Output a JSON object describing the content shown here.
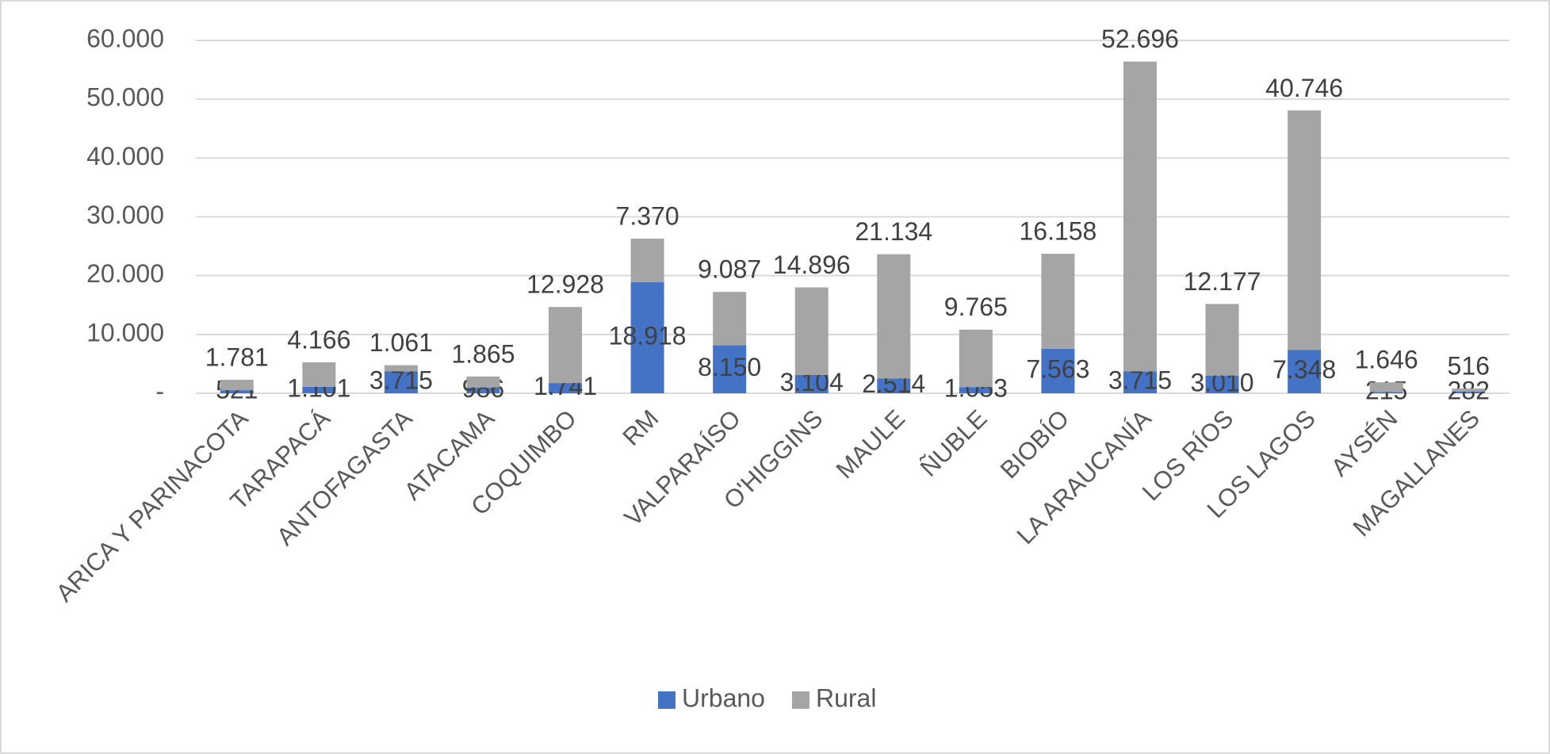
{
  "chart_data": {
    "type": "stacked_bar",
    "categories": [
      "ARICA Y PARINACOTA",
      "TARAPACÁ",
      "ANTOFAGASTA",
      "ATACAMA",
      "COQUIMBO",
      "RM",
      "VALPARAÍSO",
      "O'HIGGINS",
      "MAULE",
      "ÑUBLE",
      "BIOBÍO",
      "LA ARAUCANÍA",
      "LOS RÍOS",
      "LOS LAGOS",
      "AYSÉN",
      "MAGALLANES"
    ],
    "series": [
      {
        "name": "Urbano",
        "color": "#4472c4",
        "values": [
          521,
          1101,
          3715,
          986,
          1741,
          18918,
          8150,
          3104,
          2514,
          1053,
          7563,
          3715,
          3010,
          7348,
          215,
          282
        ],
        "value_labels": [
          "521",
          "1.101",
          "3.715",
          "986",
          "1.741",
          "18.918",
          "8.150",
          "3.104",
          "2.514",
          "1.053",
          "7.563",
          "3.715",
          "3.010",
          "7.348",
          "215",
          "282"
        ]
      },
      {
        "name": "Rural",
        "color": "#a5a5a5",
        "values": [
          1781,
          4166,
          1061,
          1865,
          12928,
          7370,
          9087,
          14896,
          21134,
          9765,
          16158,
          52696,
          12177,
          40746,
          1646,
          516
        ],
        "value_labels": [
          "1.781",
          "4.166",
          "1.061",
          "1.865",
          "12.928",
          "7.370",
          "9.087",
          "14.896",
          "21.134",
          "9.765",
          "16.158",
          "52.696",
          "12.177",
          "40.746",
          "1.646",
          "516"
        ]
      }
    ],
    "ylim": [
      0,
      60000
    ],
    "yticks": [
      {
        "value": 0,
        "label": "-"
      },
      {
        "value": 10000,
        "label": "10.000"
      },
      {
        "value": 20000,
        "label": "20.000"
      },
      {
        "value": 30000,
        "label": "30.000"
      },
      {
        "value": 40000,
        "label": "40.000"
      },
      {
        "value": 50000,
        "label": "50.000"
      },
      {
        "value": 60000,
        "label": "60.000"
      }
    ],
    "grid": true,
    "legend": "bottom"
  }
}
